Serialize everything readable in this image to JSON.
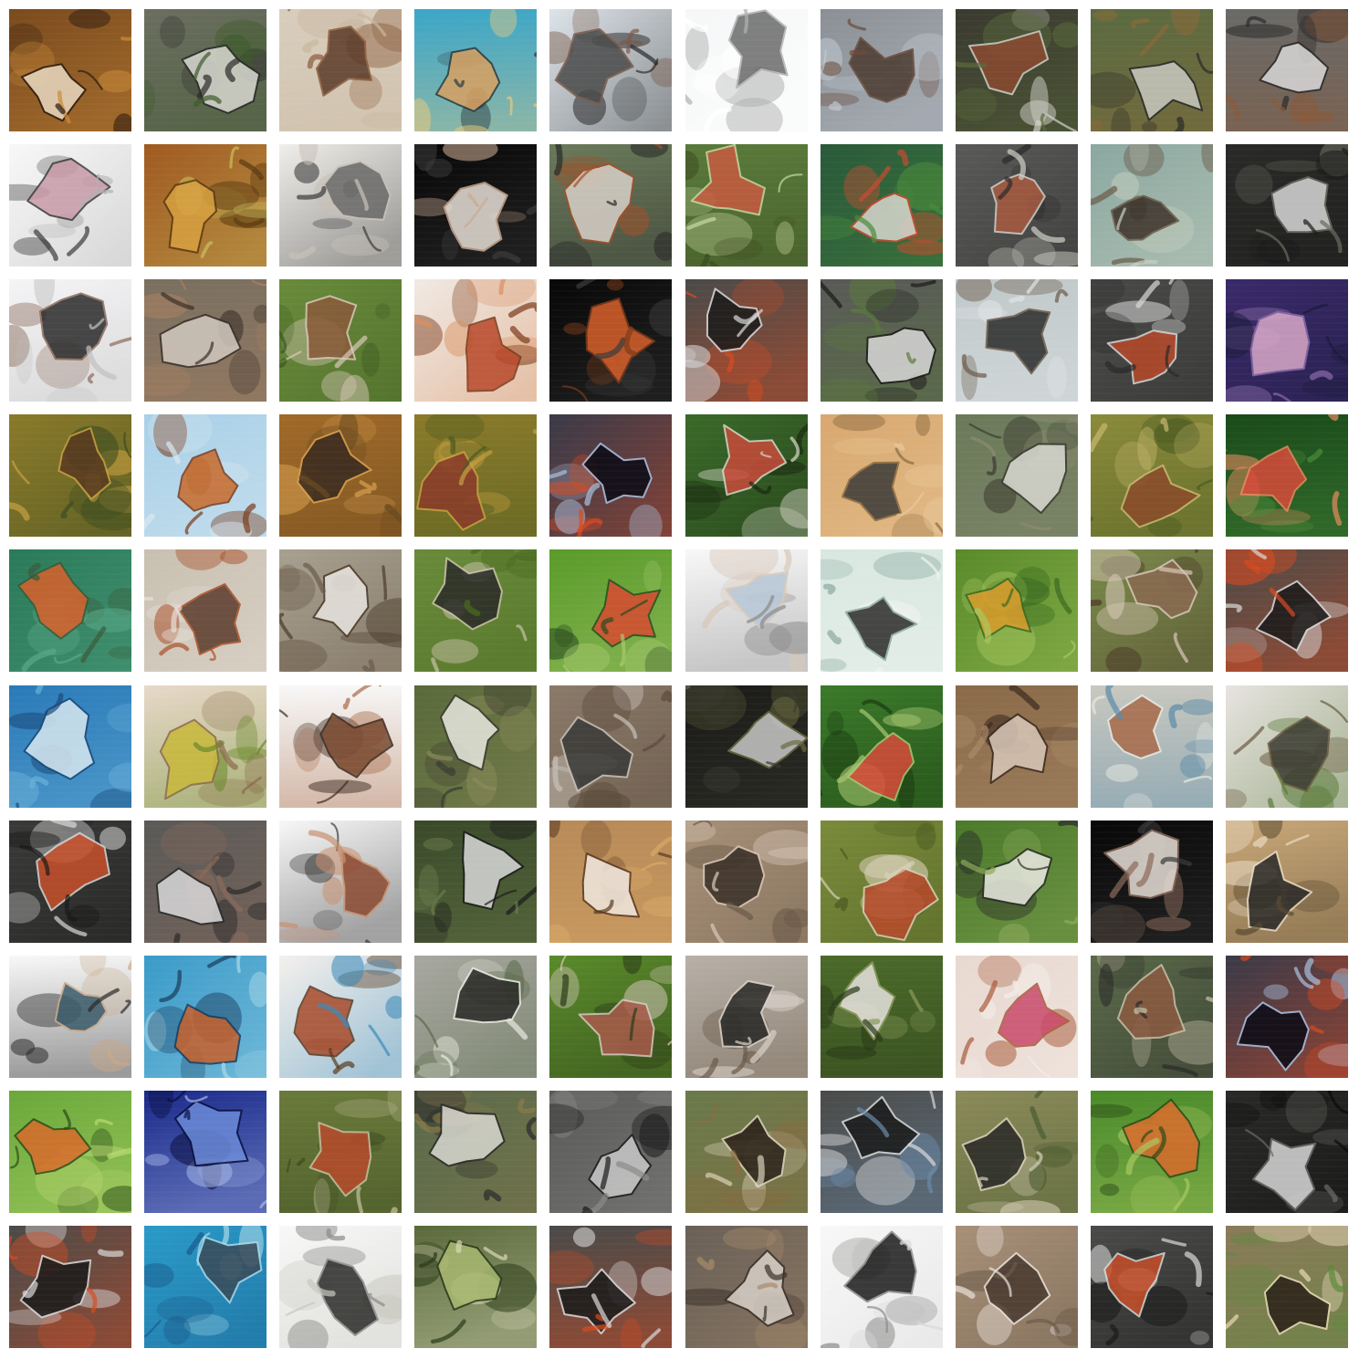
{
  "grid": {
    "rows": 10,
    "cols": 10,
    "tiles": [
      {
        "bg": "#7a4a1e",
        "fg": "#e8d8c0",
        "accent": "#2a1a10",
        "detail": "#c98a3a"
      },
      {
        "bg": "#6b6e60",
        "fg": "#d8d8d0",
        "accent": "#2a2a2a",
        "detail": "#3c5a2a"
      },
      {
        "bg": "#d8cdbd",
        "fg": "#5a3a28",
        "accent": "#8a5a3a",
        "detail": "#c8b8a0"
      },
      {
        "bg": "#3aa6c8",
        "fg": "#d8a060",
        "accent": "#2a3a40",
        "detail": "#e8c880"
      },
      {
        "bg": "#dde4ea",
        "fg": "#4a4a4a",
        "accent": "#7a5a48",
        "detail": "#2a2a2a"
      },
      {
        "bg": "#f6f7f8",
        "fg": "#6a6a6a",
        "accent": "#b0b0b0",
        "detail": "#ffffff"
      },
      {
        "bg": "#8a8f95",
        "fg": "#4a3a30",
        "accent": "#6a4a38",
        "detail": "#c0c8d0"
      },
      {
        "bg": "#3a3a30",
        "fg": "#8a4a30",
        "accent": "#d0d0c8",
        "detail": "#5a6a3a"
      },
      {
        "bg": "#5a6a40",
        "fg": "#c8c8c0",
        "accent": "#2a2a2a",
        "detail": "#8a6a3a"
      },
      {
        "bg": "#6a6a68",
        "fg": "#d8d8d8",
        "accent": "#2a2a2a",
        "detail": "#8a5a3a"
      },
      {
        "bg": "#f8f8f8",
        "fg": "#c89aa8",
        "accent": "#3a3a3a",
        "detail": "#b0b0b0"
      },
      {
        "bg": "#a05a20",
        "fg": "#d8a040",
        "accent": "#5a3a10",
        "detail": "#c8c060"
      },
      {
        "bg": "#f0eeea",
        "fg": "#6a6a6a",
        "accent": "#c8c0b8",
        "detail": "#3a3a3a"
      },
      {
        "bg": "#080808",
        "fg": "#e8e0d8",
        "accent": "#c8a890",
        "detail": "#3a3a3a"
      },
      {
        "bg": "#6a7a5a",
        "fg": "#d8d0c8",
        "accent": "#a0502a",
        "detail": "#2a2a2a"
      },
      {
        "bg": "#5a7a3a",
        "fg": "#c85a40",
        "accent": "#c8d8a0",
        "detail": "#3a4a20"
      },
      {
        "bg": "#2a5a3a",
        "fg": "#d8d8d0",
        "accent": "#c84a30",
        "detail": "#4a8a3a"
      },
      {
        "bg": "#5a5a58",
        "fg": "#a85a40",
        "accent": "#d0d0c8",
        "detail": "#2a2a2a"
      },
      {
        "bg": "#8aa8a0",
        "fg": "#3a3028",
        "accent": "#6a5a48",
        "detail": "#c8d0c0"
      },
      {
        "bg": "#2a2a28",
        "fg": "#d8d8d8",
        "accent": "#6a6a60",
        "detail": "#1a1a1a"
      },
      {
        "bg": "#f4f4f6",
        "fg": "#2a2a2a",
        "accent": "#8a6a5a",
        "detail": "#c0c0c0"
      },
      {
        "bg": "#7a7060",
        "fg": "#d0c8c0",
        "accent": "#3a3028",
        "detail": "#a88060"
      },
      {
        "bg": "#6a8a3a",
        "fg": "#8a5a3a",
        "accent": "#d8c8b8",
        "detail": "#3a5a20"
      },
      {
        "bg": "#f0eae4",
        "fg": "#b8482a",
        "accent": "#7a3a1a",
        "detail": "#d89060"
      },
      {
        "bg": "#080808",
        "fg": "#d8602a",
        "accent": "#7a3a1a",
        "detail": "#3a3a3a"
      },
      {
        "bg": "#4a4a48",
        "fg": "#1a1a1a",
        "accent": "#d8d8d8",
        "detail": "#d84a20"
      },
      {
        "bg": "#5a5a58",
        "fg": "#d8d8d8",
        "accent": "#1a1a1a",
        "detail": "#5a7a3a"
      },
      {
        "bg": "#c0c8c8",
        "fg": "#2a2a2a",
        "accent": "#6a5a4a",
        "detail": "#e0e4e8"
      },
      {
        "bg": "#4a4a48",
        "fg": "#b84a2a",
        "accent": "#d8d8d8",
        "detail": "#2a2a2a"
      },
      {
        "bg": "#3a2a6a",
        "fg": "#d8a8c8",
        "accent": "#8a6aa8",
        "detail": "#1a1a3a"
      },
      {
        "bg": "#8a7a2a",
        "fg": "#5a3a20",
        "accent": "#c8a040",
        "detail": "#3a4a20"
      },
      {
        "bg": "#a8d0e8",
        "fg": "#c86a2a",
        "accent": "#7a3a1a",
        "detail": "#d8e8f0"
      },
      {
        "bg": "#a06a28",
        "fg": "#3a2a20",
        "accent": "#d8a050",
        "detail": "#6a4a20"
      },
      {
        "bg": "#8a7a2a",
        "fg": "#8a3a2a",
        "accent": "#c8a040",
        "detail": "#4a5a20"
      },
      {
        "bg": "#3a3a48",
        "fg": "#0a0a14",
        "accent": "#a8c0e0",
        "detail": "#d84a20"
      },
      {
        "bg": "#3a6a2a",
        "fg": "#c84a3a",
        "accent": "#d8d8c8",
        "detail": "#1a2a10"
      },
      {
        "bg": "#d8a870",
        "fg": "#3a3a38",
        "accent": "#8a6a40",
        "detail": "#e8c898"
      },
      {
        "bg": "#6a7a5a",
        "fg": "#d8d8d0",
        "accent": "#3a3a30",
        "detail": "#8a8a70"
      },
      {
        "bg": "#8a8a3a",
        "fg": "#8a4a2a",
        "accent": "#c8b870",
        "detail": "#4a5a20"
      },
      {
        "bg": "#1a4a1a",
        "fg": "#d84a3a",
        "accent": "#e88a60",
        "detail": "#4a8a3a"
      },
      {
        "bg": "#2a7a5a",
        "fg": "#d8602a",
        "accent": "#3a5a3a",
        "detail": "#5aa888"
      },
      {
        "bg": "#c8c0b0",
        "fg": "#5a3a2a",
        "accent": "#a8502a",
        "detail": "#e8e0d8"
      },
      {
        "bg": "#a8a090",
        "fg": "#e8e4e0",
        "accent": "#4a3a2a",
        "detail": "#6a5a48"
      },
      {
        "bg": "#6a8a3a",
        "fg": "#2a2a28",
        "accent": "#c8c0a8",
        "detail": "#4a6a20"
      },
      {
        "bg": "#5a9a2a",
        "fg": "#d84a30",
        "accent": "#2a4a20",
        "detail": "#a8c870"
      },
      {
        "bg": "#f8f8f8",
        "fg": "#b8c8d8",
        "accent": "#d8c8b8",
        "detail": "#8a8a8a"
      },
      {
        "bg": "#d8e8e0",
        "fg": "#2a2a28",
        "accent": "#8aa8a0",
        "detail": "#f0f4f0"
      },
      {
        "bg": "#5a8a2a",
        "fg": "#d89a2a",
        "accent": "#3a6a20",
        "detail": "#a8c860"
      },
      {
        "bg": "#7a8a4a",
        "fg": "#8a6a50",
        "accent": "#d8c8b8",
        "detail": "#4a3a28"
      },
      {
        "bg": "#4a4a48",
        "fg": "#1a1a1a",
        "accent": "#d8d8d8",
        "detail": "#d84a20"
      },
      {
        "bg": "#2a7ab8",
        "fg": "#d8e8f0",
        "accent": "#1a4a7a",
        "detail": "#6ab0d8"
      },
      {
        "bg": "#e8d8c8",
        "fg": "#c8b83a",
        "accent": "#8a6a4a",
        "detail": "#6a8a2a"
      },
      {
        "bg": "#f8f8f8",
        "fg": "#7a4a30",
        "accent": "#3a2a20",
        "detail": "#a86a48"
      },
      {
        "bg": "#5a6a3a",
        "fg": "#e8e8e0",
        "accent": "#3a3a30",
        "detail": "#8a8a5a"
      },
      {
        "bg": "#8a7a6a",
        "fg": "#3a3a38",
        "accent": "#c8c0b8",
        "detail": "#5a4a3a"
      },
      {
        "bg": "#1a1a18",
        "fg": "#c8c8c8",
        "accent": "#6a6a40",
        "detail": "#3a3a30"
      },
      {
        "bg": "#3a7a2a",
        "fg": "#d84a3a",
        "accent": "#a8c870",
        "detail": "#1a3a10"
      },
      {
        "bg": "#8a6a48",
        "fg": "#d8c8b8",
        "accent": "#3a2a20",
        "detail": "#a88a68"
      },
      {
        "bg": "#c8c8c0",
        "fg": "#a86a4a",
        "accent": "#e8e8e0",
        "detail": "#5a8aa8"
      },
      {
        "bg": "#e8e4e0",
        "fg": "#3a3a30",
        "accent": "#6a5a40",
        "detail": "#5a7a3a"
      },
      {
        "bg": "#3a3a38",
        "fg": "#c8502a",
        "accent": "#d8d8d8",
        "detail": "#1a1a1a"
      },
      {
        "bg": "#5a5a58",
        "fg": "#d8d8d8",
        "accent": "#2a2a2a",
        "detail": "#8a6a5a"
      },
      {
        "bg": "#f8f8f8",
        "fg": "#8a4a30",
        "accent": "#c89070",
        "detail": "#3a3a3a"
      },
      {
        "bg": "#3a4a2a",
        "fg": "#d8d8d8",
        "accent": "#1a1a1a",
        "detail": "#6a7a4a"
      },
      {
        "bg": "#b88a58",
        "fg": "#f0e8e0",
        "accent": "#5a3a20",
        "detail": "#d8a868"
      },
      {
        "bg": "#a89078",
        "fg": "#3a3028",
        "accent": "#d8c8b8",
        "detail": "#6a5a48"
      },
      {
        "bg": "#7a8a3a",
        "fg": "#b84a2a",
        "accent": "#d8d0b8",
        "detail": "#4a5a20"
      },
      {
        "bg": "#4a7a2a",
        "fg": "#e8e8e0",
        "accent": "#2a2a28",
        "detail": "#8aa858"
      },
      {
        "bg": "#080808",
        "fg": "#e8e0d8",
        "accent": "#8a6a5a",
        "detail": "#3a3a3a"
      },
      {
        "bg": "#c8a878",
        "fg": "#2a2a28",
        "accent": "#e8d8c0",
        "detail": "#5a4a30"
      },
      {
        "bg": "#f8f8f8",
        "fg": "#3a5a6a",
        "accent": "#c8a888",
        "detail": "#2a2a2a"
      },
      {
        "bg": "#3a9ac8",
        "fg": "#c8602a",
        "accent": "#1a3a5a",
        "detail": "#a8d8e8"
      },
      {
        "bg": "#f4f0ec",
        "fg": "#a84a2a",
        "accent": "#5a3a20",
        "detail": "#3a8ab8"
      },
      {
        "bg": "#a8a8a0",
        "fg": "#2a2a28",
        "accent": "#e8e8e0",
        "detail": "#5a6a4a"
      },
      {
        "bg": "#5a8a2a",
        "fg": "#a85a4a",
        "accent": "#d8c8c0",
        "detail": "#2a3a18"
      },
      {
        "bg": "#b8b0a8",
        "fg": "#2a2a28",
        "accent": "#d8d0c8",
        "detail": "#6a5a48"
      },
      {
        "bg": "#4a6a2a",
        "fg": "#e8e4e0",
        "accent": "#8a9a5a",
        "detail": "#2a3a18"
      },
      {
        "bg": "#e8d8d0",
        "fg": "#c84a6a",
        "accent": "#a85a3a",
        "detail": "#f4ece8"
      },
      {
        "bg": "#5a6a48",
        "fg": "#8a5a40",
        "accent": "#c8c0a8",
        "detail": "#2a2a28"
      },
      {
        "bg": "#3a3a48",
        "fg": "#0a0a14",
        "accent": "#a8c0e0",
        "detail": "#d84a20"
      },
      {
        "bg": "#6aa83a",
        "fg": "#d86a2a",
        "accent": "#2a4a18",
        "detail": "#b8d870"
      },
      {
        "bg": "#1a2a8a",
        "fg": "#6a8ad8",
        "accent": "#0a1040",
        "detail": "#a8b8e8"
      },
      {
        "bg": "#6a7a3a",
        "fg": "#b84a2a",
        "accent": "#c8c0a0",
        "detail": "#3a4a20"
      },
      {
        "bg": "#5a6a4a",
        "fg": "#d8d8d0",
        "accent": "#2a2a28",
        "detail": "#8a7a4a"
      },
      {
        "bg": "#5a5a58",
        "fg": "#c8c8c8",
        "accent": "#1a1a1a",
        "detail": "#8a8a88"
      },
      {
        "bg": "#6a7a4a",
        "fg": "#2a2018",
        "accent": "#d8d0b8",
        "detail": "#8a6a40"
      },
      {
        "bg": "#4a4a48",
        "fg": "#1a1a1a",
        "accent": "#d8d8d8",
        "detail": "#6a8aa8"
      },
      {
        "bg": "#8a8a5a",
        "fg": "#2a2a28",
        "accent": "#d8d0b8",
        "detail": "#4a5a30"
      },
      {
        "bg": "#4a8a2a",
        "fg": "#d86a2a",
        "accent": "#2a4a18",
        "detail": "#a8c860"
      },
      {
        "bg": "#2a2a28",
        "fg": "#d8d8d8",
        "accent": "#6a6a68",
        "detail": "#0a0a0a"
      },
      {
        "bg": "#4a4a48",
        "fg": "#1a1a1a",
        "accent": "#d8d8d8",
        "detail": "#d84a20"
      },
      {
        "bg": "#2a9ac8",
        "fg": "#3a4a58",
        "accent": "#a8d8e8",
        "detail": "#1a5a8a"
      },
      {
        "bg": "#f8f8f8",
        "fg": "#2a2a28",
        "accent": "#8a8a88",
        "detail": "#c8c8c0"
      },
      {
        "bg": "#5a6a3a",
        "fg": "#a8b870",
        "accent": "#2a3a18",
        "detail": "#d8d8b8"
      },
      {
        "bg": "#4a4a48",
        "fg": "#1a1a1a",
        "accent": "#d8d8d8",
        "detail": "#d84a20"
      },
      {
        "bg": "#6a6058",
        "fg": "#d8d0c8",
        "accent": "#3a3028",
        "detail": "#a88a6a"
      },
      {
        "bg": "#f8f8f8",
        "fg": "#1a1a1a",
        "accent": "#8a8a88",
        "detail": "#d8d8d8"
      },
      {
        "bg": "#a89078",
        "fg": "#4a3a30",
        "accent": "#e8e0d8",
        "detail": "#6a5a48"
      },
      {
        "bg": "#4a4a48",
        "fg": "#c8502a",
        "accent": "#d8d8d8",
        "detail": "#1a1a1a"
      },
      {
        "bg": "#8a7a5a",
        "fg": "#2a2018",
        "accent": "#e8d8b8",
        "detail": "#5a8a3a"
      }
    ]
  }
}
